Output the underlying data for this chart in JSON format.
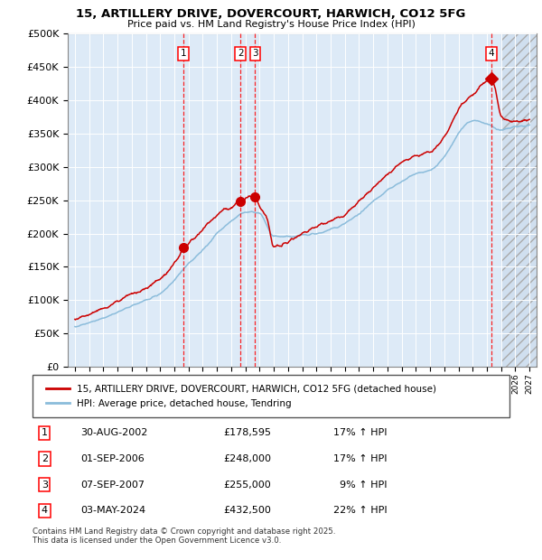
{
  "title": "15, ARTILLERY DRIVE, DOVERCOURT, HARWICH, CO12 5FG",
  "subtitle": "Price paid vs. HM Land Registry's House Price Index (HPI)",
  "ylim": [
    0,
    500000
  ],
  "yticks": [
    0,
    50000,
    100000,
    150000,
    200000,
    250000,
    300000,
    350000,
    400000,
    450000,
    500000
  ],
  "xlim": [
    1994.5,
    2027.5
  ],
  "hpi_color": "#8bbcdb",
  "price_color": "#cc0000",
  "bg_color": "#ddeaf7",
  "hatch_bg": "#c8d8ea",
  "legend_label_price": "15, ARTILLERY DRIVE, DOVERCOURT, HARWICH, CO12 5FG (detached house)",
  "legend_label_hpi": "HPI: Average price, detached house, Tendring",
  "transactions": [
    {
      "year": 2002.66,
      "price": 178595,
      "label": "1"
    },
    {
      "year": 2006.67,
      "price": 248000,
      "label": "2"
    },
    {
      "year": 2007.69,
      "price": 255000,
      "label": "3"
    },
    {
      "year": 2024.33,
      "price": 432500,
      "label": "4"
    }
  ],
  "table_rows": [
    {
      "num": "1",
      "date": "30-AUG-2002",
      "price": "£178,595",
      "hpi": "17% ↑ HPI"
    },
    {
      "num": "2",
      "date": "01-SEP-2006",
      "price": "£248,000",
      "hpi": "17% ↑ HPI"
    },
    {
      "num": "3",
      "date": "07-SEP-2007",
      "price": "£255,000",
      "hpi": "  9% ↑ HPI"
    },
    {
      "num": "4",
      "date": "03-MAY-2024",
      "price": "£432,500",
      "hpi": "22% ↑ HPI"
    }
  ],
  "footer": "Contains HM Land Registry data © Crown copyright and database right 2025.\nThis data is licensed under the Open Government Licence v3.0."
}
